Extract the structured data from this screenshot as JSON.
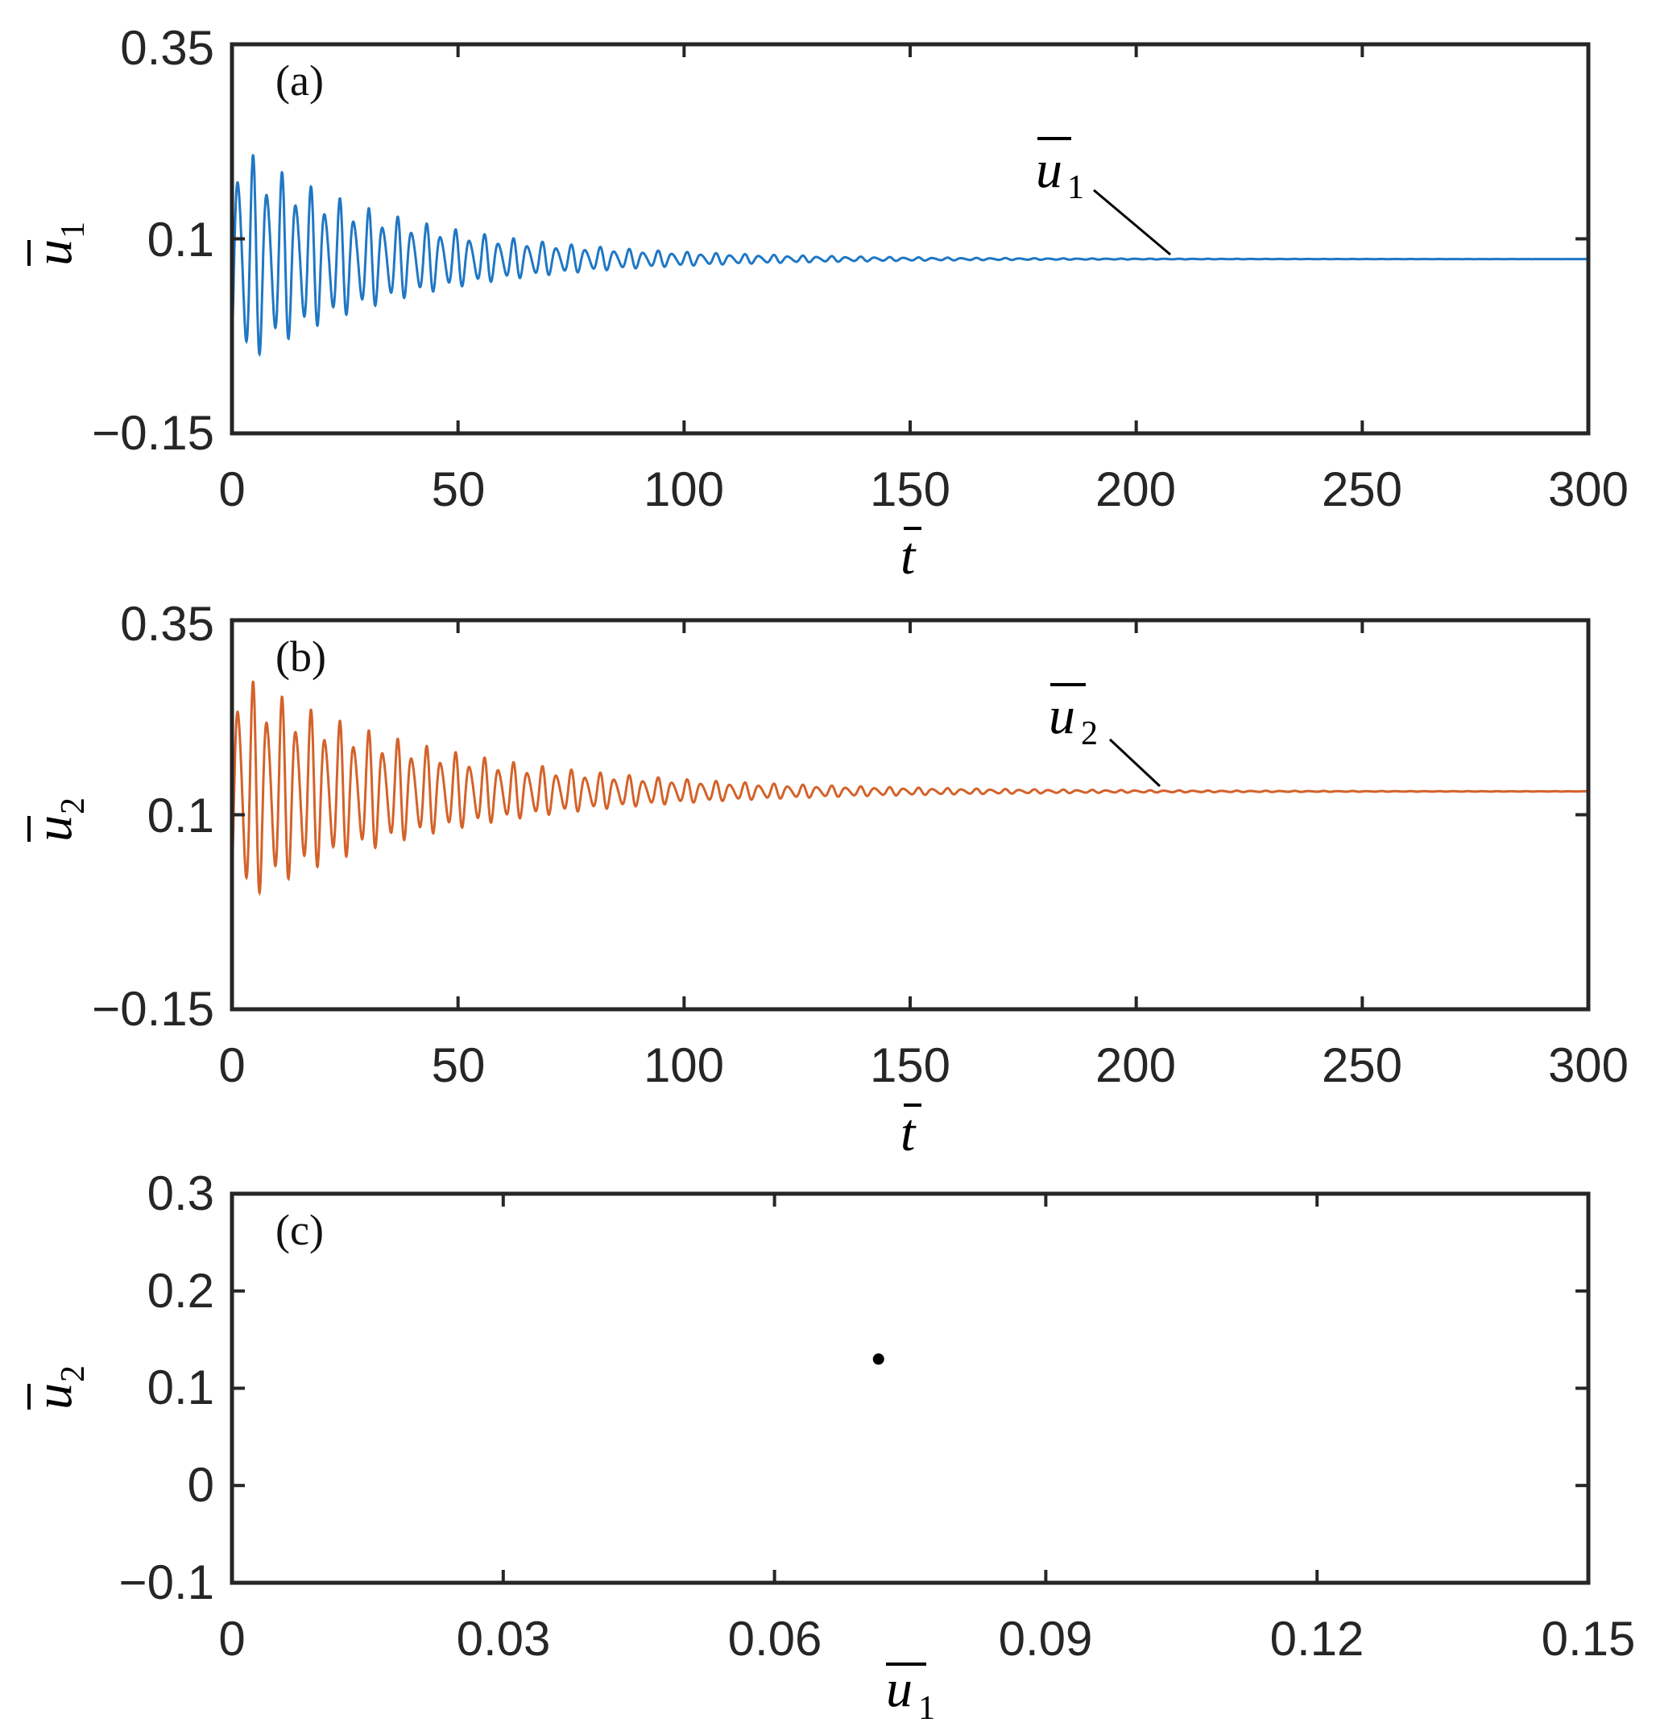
{
  "chart_data": [
    {
      "type": "line",
      "panel_label": "(a)",
      "xlabel": "t",
      "ylabel": "u",
      "ylabel_sub": "1",
      "xlim": [
        0,
        300
      ],
      "ylim": [
        -0.15,
        0.35
      ],
      "xticks": [
        "0",
        "50",
        "100",
        "150",
        "200",
        "250",
        "300"
      ],
      "yticks": [
        "−0.15",
        "0.1",
        "0.35"
      ],
      "series": [
        {
          "name": "u1",
          "color": "#1f77c4",
          "signal": {
            "mean": 0.074,
            "initial_amplitude": 0.155,
            "decay_rate": 0.028,
            "period": 3.2
          }
        }
      ],
      "annotation": {
        "text": "u",
        "sub": "1",
        "points_to": [
          207,
          0.074
        ]
      }
    },
    {
      "type": "line",
      "panel_label": "(b)",
      "xlabel": "t",
      "ylabel": "u",
      "ylabel_sub": "2",
      "xlim": [
        0,
        300
      ],
      "ylim": [
        -0.15,
        0.35
      ],
      "xticks": [
        "0",
        "50",
        "100",
        "150",
        "200",
        "250",
        "300"
      ],
      "yticks": [
        "−0.15",
        "0.1",
        "0.35"
      ],
      "series": [
        {
          "name": "u2",
          "color": "#d4622a",
          "signal": {
            "mean": 0.13,
            "initial_amplitude": 0.16,
            "decay_rate": 0.023,
            "period": 3.2
          }
        }
      ],
      "annotation": {
        "text": "u",
        "sub": "2",
        "points_to": [
          205,
          0.13
        ]
      }
    },
    {
      "type": "scatter",
      "panel_label": "(c)",
      "xlabel": "u",
      "xlabel_sub": "1",
      "ylabel": "u",
      "ylabel_sub": "2",
      "xlim": [
        0,
        0.15
      ],
      "ylim": [
        -0.1,
        0.3
      ],
      "xticks": [
        "0",
        "0.03",
        "0.06",
        "0.09",
        "0.12",
        "0.15"
      ],
      "yticks": [
        "−0.1",
        "0",
        "0.1",
        "0.2",
        "0.3"
      ],
      "points": [
        {
          "x": 0.0715,
          "y": 0.13
        }
      ],
      "color": "#000000"
    }
  ]
}
